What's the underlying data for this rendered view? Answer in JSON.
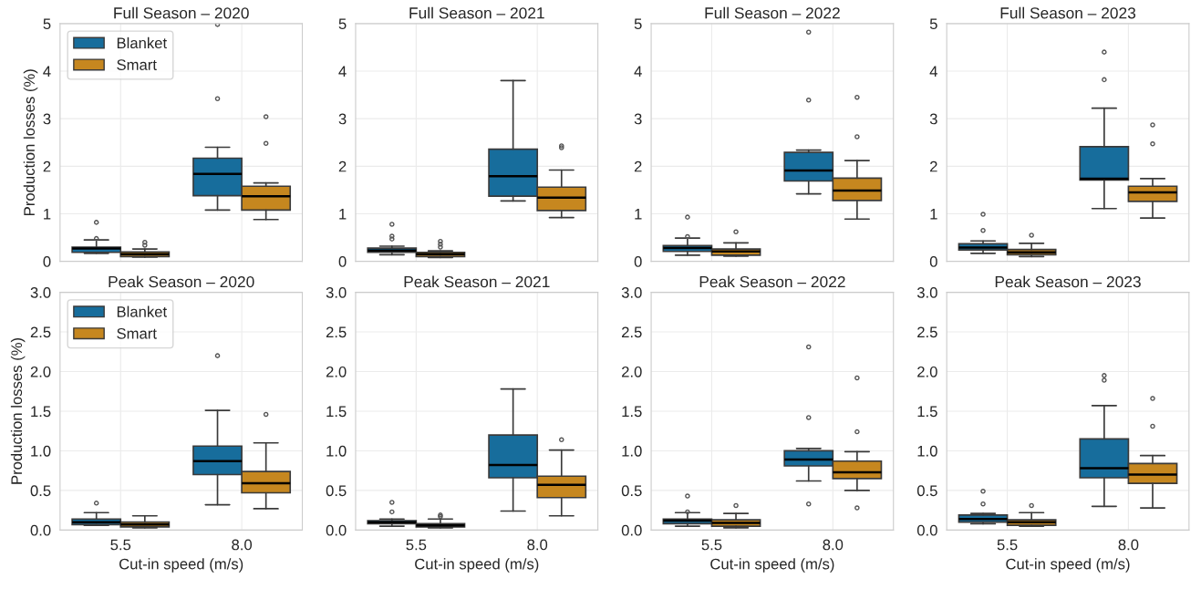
{
  "chart_data": [
    {
      "type": "box",
      "title": "Full Season – 2020",
      "ylabel": "Production losses (%)",
      "categories": [
        "5.5",
        "8.0"
      ],
      "ylim": [
        0,
        5
      ],
      "yticks": [
        0,
        1,
        2,
        3,
        4,
        5
      ],
      "grid": true,
      "legend": "top left",
      "tick_labels": "y",
      "series": [
        {
          "name": "Blanket",
          "color": "#176d9c",
          "boxes": [
            {
              "low": 0.17,
              "q1": 0.19,
              "median": 0.27,
              "q3": 0.3,
              "high": 0.45,
              "outliers": [
                0.48,
                0.82
              ]
            },
            {
              "low": 1.08,
              "q1": 1.38,
              "median": 1.84,
              "q3": 2.17,
              "high": 2.4,
              "outliers": [
                3.42,
                4.98
              ]
            }
          ]
        },
        {
          "name": "Smart",
          "color": "#c6871f",
          "boxes": [
            {
              "low": 0.09,
              "q1": 0.1,
              "median": 0.15,
              "q3": 0.2,
              "high": 0.26,
              "outliers": [
                0.34,
                0.4
              ]
            },
            {
              "low": 0.88,
              "q1": 1.08,
              "median": 1.37,
              "q3": 1.58,
              "high": 1.65,
              "outliers": [
                2.48,
                3.04
              ]
            }
          ]
        }
      ]
    },
    {
      "type": "box",
      "title": "Full Season – 2021",
      "categories": [
        "5.5",
        "8.0"
      ],
      "ylim": [
        0,
        5
      ],
      "yticks": [
        0,
        1,
        2,
        3,
        4,
        5
      ],
      "grid": true,
      "tick_labels": "y",
      "series": [
        {
          "color": "#176d9c",
          "boxes": [
            {
              "low": 0.14,
              "q1": 0.19,
              "median": 0.23,
              "q3": 0.28,
              "high": 0.32,
              "outliers": [
                0.47,
                0.53,
                0.78
              ]
            },
            {
              "low": 1.27,
              "q1": 1.37,
              "median": 1.79,
              "q3": 2.36,
              "high": 3.8
            }
          ]
        },
        {
          "color": "#c6871f",
          "boxes": [
            {
              "low": 0.08,
              "q1": 0.1,
              "median": 0.15,
              "q3": 0.19,
              "high": 0.22,
              "outliers": [
                0.3,
                0.36,
                0.42
              ]
            },
            {
              "low": 0.92,
              "q1": 1.07,
              "median": 1.34,
              "q3": 1.56,
              "high": 1.92,
              "outliers": [
                2.39,
                2.43
              ]
            }
          ]
        }
      ]
    },
    {
      "type": "box",
      "title": "Full Season – 2022",
      "categories": [
        "5.5",
        "8.0"
      ],
      "ylim": [
        0,
        5
      ],
      "yticks": [
        0,
        1,
        2,
        3,
        4,
        5
      ],
      "grid": true,
      "tick_labels": "y",
      "series": [
        {
          "color": "#176d9c",
          "boxes": [
            {
              "low": 0.13,
              "q1": 0.21,
              "median": 0.28,
              "q3": 0.33,
              "high": 0.49,
              "outliers": [
                0.52,
                0.93
              ]
            },
            {
              "low": 1.42,
              "q1": 1.69,
              "median": 1.91,
              "q3": 2.29,
              "high": 2.34,
              "outliers": [
                3.39,
                4.82
              ]
            }
          ]
        },
        {
          "color": "#c6871f",
          "boxes": [
            {
              "low": 0.11,
              "q1": 0.13,
              "median": 0.21,
              "q3": 0.26,
              "high": 0.39,
              "outliers": [
                0.62
              ]
            },
            {
              "low": 0.89,
              "q1": 1.28,
              "median": 1.49,
              "q3": 1.75,
              "high": 2.12,
              "outliers": [
                2.62,
                3.45
              ]
            }
          ]
        }
      ]
    },
    {
      "type": "box",
      "title": "Full Season – 2023",
      "categories": [
        "5.5",
        "8.0"
      ],
      "ylim": [
        0,
        5
      ],
      "yticks": [
        0,
        1,
        2,
        3,
        4,
        5
      ],
      "grid": true,
      "tick_labels": "y",
      "series": [
        {
          "color": "#176d9c",
          "boxes": [
            {
              "low": 0.17,
              "q1": 0.24,
              "median": 0.29,
              "q3": 0.37,
              "high": 0.43,
              "outliers": [
                0.65,
                0.99
              ]
            },
            {
              "low": 1.11,
              "q1": 1.71,
              "median": 1.74,
              "q3": 2.41,
              "high": 3.22,
              "outliers": [
                3.82,
                4.4
              ]
            }
          ]
        },
        {
          "color": "#c6871f",
          "boxes": [
            {
              "low": 0.1,
              "q1": 0.14,
              "median": 0.19,
              "q3": 0.25,
              "high": 0.38,
              "outliers": [
                0.55
              ]
            },
            {
              "low": 0.91,
              "q1": 1.26,
              "median": 1.45,
              "q3": 1.58,
              "high": 1.74,
              "outliers": [
                2.47,
                2.87
              ]
            }
          ]
        }
      ]
    },
    {
      "type": "box",
      "title": "Peak Season – 2020",
      "xlabel": "Cut-in speed (m/s)",
      "ylabel": "Production losses (%)",
      "categories": [
        "5.5",
        "8.0"
      ],
      "ylim": [
        0,
        3
      ],
      "yticks": [
        {
          "value": 0,
          "label": "0.0"
        },
        {
          "value": 0.5,
          "label": "0.5"
        },
        {
          "value": 1,
          "label": "1.0"
        },
        {
          "value": 1.5,
          "label": "1.5"
        },
        {
          "value": 2,
          "label": "2.0"
        },
        {
          "value": 2.5,
          "label": "2.5"
        },
        {
          "value": 3,
          "label": "3.0"
        }
      ],
      "grid": true,
      "legend": "top left",
      "series": [
        {
          "name": "Blanket",
          "color": "#176d9c",
          "boxes": [
            {
              "low": 0.06,
              "q1": 0.07,
              "median": 0.1,
              "q3": 0.14,
              "high": 0.22,
              "outliers": [
                0.34
              ]
            },
            {
              "low": 0.32,
              "q1": 0.7,
              "median": 0.87,
              "q3": 1.06,
              "high": 1.51,
              "outliers": [
                2.2
              ]
            }
          ]
        },
        {
          "name": "Smart",
          "color": "#c6871f",
          "boxes": [
            {
              "low": 0.03,
              "q1": 0.04,
              "median": 0.07,
              "q3": 0.1,
              "high": 0.18
            },
            {
              "low": 0.27,
              "q1": 0.47,
              "median": 0.59,
              "q3": 0.74,
              "high": 1.1,
              "outliers": [
                1.46
              ]
            }
          ]
        }
      ]
    },
    {
      "type": "box",
      "title": "Peak Season – 2021",
      "xlabel": "Cut-in speed (m/s)",
      "categories": [
        "5.5",
        "8.0"
      ],
      "ylim": [
        0,
        3
      ],
      "yticks": [
        {
          "value": 0,
          "label": "0.0"
        },
        {
          "value": 0.5,
          "label": "0.5"
        },
        {
          "value": 1,
          "label": "1.0"
        },
        {
          "value": 1.5,
          "label": "1.5"
        },
        {
          "value": 2,
          "label": "2.0"
        },
        {
          "value": 2.5,
          "label": "2.5"
        },
        {
          "value": 3,
          "label": "3.0"
        }
      ],
      "grid": true,
      "series": [
        {
          "color": "#176d9c",
          "boxes": [
            {
              "low": 0.05,
              "q1": 0.08,
              "median": 0.1,
              "q3": 0.12,
              "high": 0.14,
              "outliers": [
                0.23,
                0.35
              ]
            },
            {
              "low": 0.24,
              "q1": 0.66,
              "median": 0.82,
              "q3": 1.2,
              "high": 1.78
            }
          ]
        },
        {
          "color": "#c6871f",
          "boxes": [
            {
              "low": 0.03,
              "q1": 0.04,
              "median": 0.06,
              "q3": 0.08,
              "high": 0.14,
              "outliers": [
                0.17,
                0.19
              ]
            },
            {
              "low": 0.18,
              "q1": 0.41,
              "median": 0.57,
              "q3": 0.68,
              "high": 1.01,
              "outliers": [
                1.14
              ]
            }
          ]
        }
      ]
    },
    {
      "type": "box",
      "title": "Peak Season – 2022",
      "xlabel": "Cut-in speed (m/s)",
      "categories": [
        "5.5",
        "8.0"
      ],
      "ylim": [
        0,
        3
      ],
      "yticks": [
        {
          "value": 0,
          "label": "0.0"
        },
        {
          "value": 0.5,
          "label": "0.5"
        },
        {
          "value": 1,
          "label": "1.0"
        },
        {
          "value": 1.5,
          "label": "1.5"
        },
        {
          "value": 2,
          "label": "2.0"
        },
        {
          "value": 2.5,
          "label": "2.5"
        },
        {
          "value": 3,
          "label": "3.0"
        }
      ],
      "grid": true,
      "series": [
        {
          "color": "#176d9c",
          "boxes": [
            {
              "low": 0.05,
              "q1": 0.08,
              "median": 0.12,
              "q3": 0.14,
              "high": 0.22,
              "outliers": [
                0.23,
                0.43
              ]
            },
            {
              "low": 0.62,
              "q1": 0.81,
              "median": 0.89,
              "q3": 1.0,
              "high": 1.03,
              "outliers": [
                0.33,
                1.42,
                2.31
              ]
            }
          ]
        },
        {
          "color": "#c6871f",
          "boxes": [
            {
              "low": 0.03,
              "q1": 0.05,
              "median": 0.09,
              "q3": 0.13,
              "high": 0.21,
              "outliers": [
                0.31
              ]
            },
            {
              "low": 0.5,
              "q1": 0.65,
              "median": 0.73,
              "q3": 0.87,
              "high": 0.99,
              "outliers": [
                0.28,
                1.24,
                1.92
              ]
            }
          ]
        }
      ]
    },
    {
      "type": "box",
      "title": "Peak Season – 2023",
      "xlabel": "Cut-in speed (m/s)",
      "categories": [
        "5.5",
        "8.0"
      ],
      "ylim": [
        0,
        3
      ],
      "yticks": [
        {
          "value": 0,
          "label": "0.0"
        },
        {
          "value": 0.5,
          "label": "0.5"
        },
        {
          "value": 1,
          "label": "1.0"
        },
        {
          "value": 1.5,
          "label": "1.5"
        },
        {
          "value": 2,
          "label": "2.0"
        },
        {
          "value": 2.5,
          "label": "2.5"
        },
        {
          "value": 3,
          "label": "3.0"
        }
      ],
      "grid": true,
      "series": [
        {
          "color": "#176d9c",
          "boxes": [
            {
              "low": 0.08,
              "q1": 0.1,
              "median": 0.14,
              "q3": 0.19,
              "high": 0.21,
              "outliers": [
                0.33,
                0.49
              ]
            },
            {
              "low": 0.3,
              "q1": 0.66,
              "median": 0.78,
              "q3": 1.15,
              "high": 1.57,
              "outliers": [
                1.89,
                1.95
              ]
            }
          ]
        },
        {
          "color": "#c6871f",
          "boxes": [
            {
              "low": 0.05,
              "q1": 0.06,
              "median": 0.1,
              "q3": 0.13,
              "high": 0.22,
              "outliers": [
                0.31
              ]
            },
            {
              "low": 0.28,
              "q1": 0.59,
              "median": 0.7,
              "q3": 0.84,
              "high": 0.94,
              "outliers": [
                1.31,
                1.66
              ]
            }
          ]
        }
      ]
    }
  ]
}
